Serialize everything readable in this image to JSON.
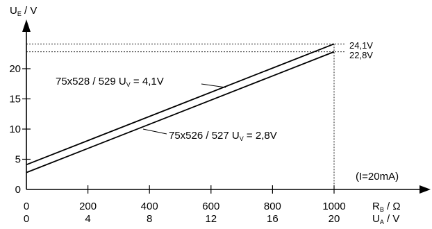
{
  "chart_data": {
    "type": "line",
    "y_axis": {
      "label_main": "U",
      "label_sub": "E",
      "label_unit": " / V",
      "range": [
        0,
        26
      ],
      "ticks": [
        0,
        5,
        10,
        15,
        20
      ]
    },
    "x_axis": {
      "range": [
        0,
        1100
      ],
      "tick_values": [
        0,
        200,
        400,
        600,
        800,
        1000
      ],
      "labels_primary": [
        "0",
        "200",
        "400",
        "600",
        "800",
        "1000"
      ],
      "labels_secondary": [
        "0",
        "4",
        "8",
        "12",
        "16",
        "20"
      ],
      "label1_main": "R",
      "label1_sub": "B",
      "label1_unit": " / Ω",
      "label2_main": "U",
      "label2_sub": "A",
      "label2_unit": " / V"
    },
    "series": [
      {
        "name_prefix": "75x528 / 529 U",
        "name_sub": "V",
        "name_suffix": " = 4,1V",
        "x": [
          0,
          1000
        ],
        "y": [
          4.1,
          24.1
        ],
        "end_label": "24,1V"
      },
      {
        "name_prefix": "75x526 / 527 U",
        "name_sub": "V",
        "name_suffix": " = 2,8V",
        "x": [
          0,
          1000
        ],
        "y": [
          2.8,
          22.8
        ],
        "end_label": "22,8V"
      }
    ],
    "annotation": "(I=20mA)"
  }
}
